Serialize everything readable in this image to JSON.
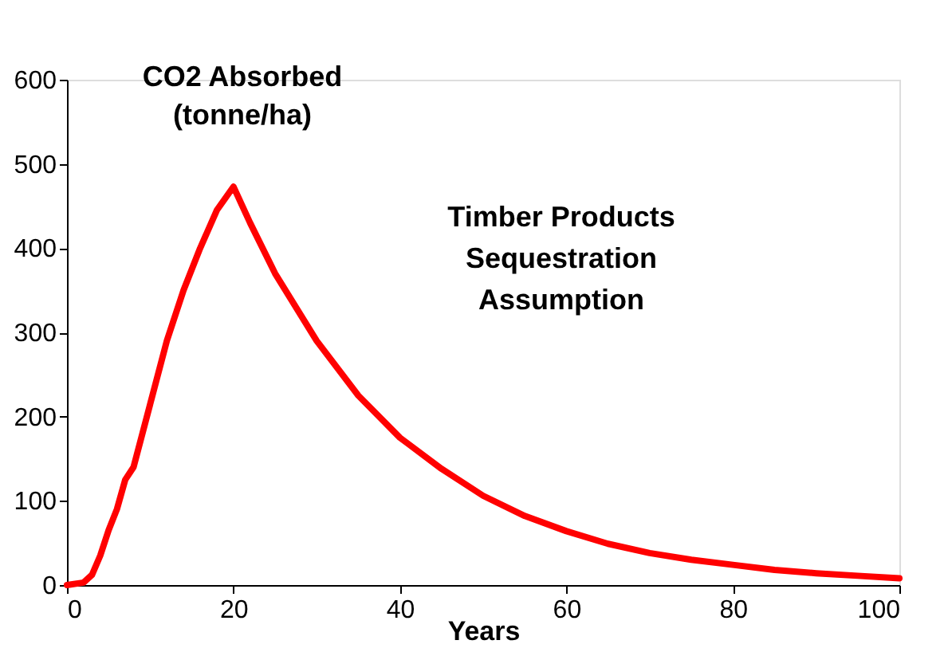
{
  "chart_data": {
    "type": "line",
    "ylabel": "CO2 Absorbed\n(tonne/ha)",
    "xlabel": "Years",
    "annotations": [
      "Timber Products\nSequestration\nAssumption"
    ],
    "series": [
      {
        "color": "#ff0000",
        "x": [
          0,
          2,
          3,
          4,
          5,
          6,
          7,
          8,
          10,
          12,
          14,
          16,
          18,
          20,
          22,
          25,
          30,
          35,
          40,
          45,
          50,
          55,
          60,
          65,
          70,
          75,
          80,
          85,
          90,
          95,
          100
        ],
        "values": [
          0,
          3,
          12,
          35,
          65,
          90,
          125,
          140,
          215,
          290,
          350,
          400,
          445,
          473,
          430,
          370,
          290,
          225,
          175,
          138,
          106,
          82,
          64,
          49,
          38,
          30,
          24,
          18,
          14,
          11,
          8
        ]
      }
    ],
    "xlim": [
      0,
      100
    ],
    "xticks": [
      0,
      20,
      40,
      60,
      80,
      100
    ],
    "ylim": [
      0,
      600
    ],
    "yticks": [
      0,
      100,
      200,
      300,
      400,
      500,
      600
    ],
    "grid": false,
    "legend": false,
    "line_style": "solid",
    "marker": "none"
  }
}
